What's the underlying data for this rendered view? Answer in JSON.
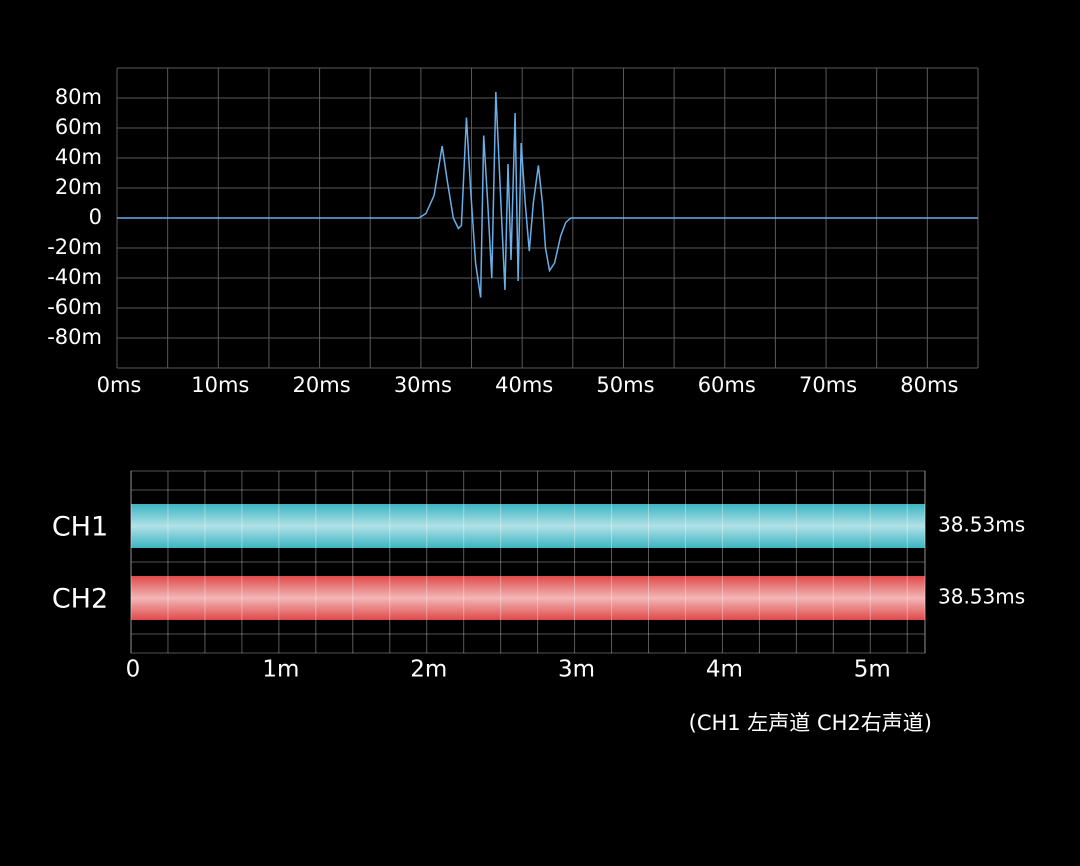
{
  "chart_data": [
    {
      "type": "line",
      "x": [
        0,
        29.8,
        30.5,
        31.3,
        32.1,
        32.6,
        33.2,
        33.7,
        34.0,
        34.5,
        34.9,
        35.4,
        35.9,
        36.2,
        36.6,
        37.0,
        37.4,
        37.9,
        38.3,
        38.6,
        38.9,
        39.3,
        39.6,
        39.9,
        40.3,
        40.7,
        41.1,
        41.6,
        42.0,
        42.3,
        42.7,
        43.2,
        43.8,
        44.3,
        44.8,
        85
      ],
      "values": [
        0,
        0,
        3,
        15,
        48,
        25,
        0,
        -7,
        -5,
        67,
        20,
        -30,
        -53,
        55,
        10,
        -40,
        84,
        10,
        -48,
        36,
        -28,
        70,
        -42,
        50,
        10,
        -22,
        10,
        35,
        10,
        -20,
        -35,
        -30,
        -12,
        -3,
        0,
        0
      ],
      "color": "#6aaee8",
      "xlim": [
        0,
        85
      ],
      "ylim": [
        -100,
        100
      ],
      "xticks": [
        {
          "value": 0,
          "label": "0ms"
        },
        {
          "value": 10,
          "label": "10ms"
        },
        {
          "value": 20,
          "label": "20ms"
        },
        {
          "value": 30,
          "label": "30ms"
        },
        {
          "value": 40,
          "label": "40ms"
        },
        {
          "value": 50,
          "label": "50ms"
        },
        {
          "value": 60,
          "label": "60ms"
        },
        {
          "value": 70,
          "label": "70ms"
        },
        {
          "value": 80,
          "label": "80ms"
        }
      ],
      "yticks": [
        {
          "value": 80,
          "label": "80m"
        },
        {
          "value": 60,
          "label": "60m"
        },
        {
          "value": 40,
          "label": "40m"
        },
        {
          "value": 20,
          "label": "20m"
        },
        0,
        {
          "value": -20,
          "label": "-20m"
        },
        {
          "value": -40,
          "label": "-40m"
        },
        {
          "value": -60,
          "label": "-60m"
        },
        {
          "value": -80,
          "label": "-80m"
        }
      ],
      "xgrid": [
        0,
        5,
        10,
        15,
        20,
        25,
        30,
        35,
        40,
        45,
        50,
        55,
        60,
        65,
        70,
        75,
        80,
        85
      ],
      "ygrid": [
        -100,
        -80,
        -60,
        -40,
        -20,
        0,
        20,
        40,
        60,
        80,
        100
      ],
      "grid": true
    },
    {
      "type": "hbar",
      "categories": [
        "CH1",
        "CH2"
      ],
      "values": [
        5.37,
        5.37
      ],
      "colors": [
        "#3cb6c2",
        "#e04a4a"
      ],
      "annotations": [
        "38.53ms",
        "38.53ms"
      ],
      "xlim": [
        0,
        5.37
      ],
      "xticks": [
        0,
        {
          "value": 1,
          "label": "1m"
        },
        {
          "value": 2,
          "label": "2m"
        },
        {
          "value": 3,
          "label": "3m"
        },
        {
          "value": 4,
          "label": "4m"
        },
        {
          "value": 5,
          "label": "5m"
        }
      ],
      "xgrid": [
        0,
        0.25,
        0.5,
        0.75,
        1,
        1.25,
        1.5,
        1.75,
        2,
        2.25,
        2.5,
        2.75,
        3,
        3.25,
        3.5,
        3.75,
        4,
        4.25,
        4.5,
        4.75,
        5,
        5.25,
        5.37
      ],
      "grid": true,
      "note": "(CH1 左声道     CH2右声道)"
    }
  ]
}
